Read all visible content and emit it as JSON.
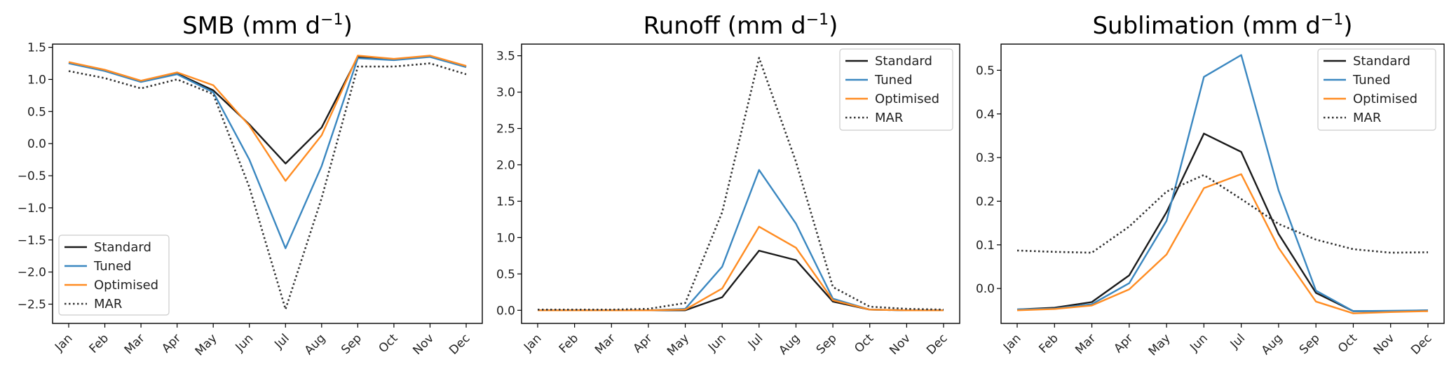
{
  "colors": {
    "standard": "#1a1a1a",
    "tuned": "#3a87c0",
    "optimised": "#ff8c22",
    "mar": "#333333"
  },
  "chart_data": [
    {
      "type": "line",
      "title": "SMB (mm d",
      "title_sup": "−1",
      "title_close": ")",
      "xlabel": "",
      "ylabel": "",
      "categories": [
        "Jan",
        "Feb",
        "Mar",
        "Apr",
        "May",
        "Jun",
        "Jul",
        "Aug",
        "Sep",
        "Oct",
        "Nov",
        "Dec"
      ],
      "ylim": [
        -2.8,
        1.55
      ],
      "yticks": [
        1.5,
        1.0,
        0.5,
        0.0,
        -0.5,
        -1.0,
        -1.5,
        -2.0,
        -2.5
      ],
      "ytick_labels": [
        "1.5",
        "1.0",
        "0.5",
        "0.0",
        "−0.5",
        "−1.0",
        "−1.5",
        "−2.0",
        "−2.5"
      ],
      "legend_position": "lower-left",
      "series": [
        {
          "name": "Standard",
          "color_key": "standard",
          "style": "solid",
          "values": [
            1.26,
            1.14,
            0.97,
            1.09,
            0.83,
            0.3,
            -0.31,
            0.25,
            1.35,
            1.31,
            1.36,
            1.2
          ]
        },
        {
          "name": "Tuned",
          "color_key": "tuned",
          "style": "solid",
          "values": [
            1.25,
            1.13,
            0.96,
            1.08,
            0.8,
            -0.25,
            -1.63,
            -0.35,
            1.33,
            1.3,
            1.35,
            1.19
          ]
        },
        {
          "name": "Optimised",
          "color_key": "optimised",
          "style": "solid",
          "values": [
            1.27,
            1.15,
            0.98,
            1.11,
            0.91,
            0.28,
            -0.58,
            0.13,
            1.37,
            1.32,
            1.37,
            1.21
          ]
        },
        {
          "name": "MAR",
          "color_key": "mar",
          "style": "dotted",
          "values": [
            1.13,
            1.02,
            0.86,
            1.0,
            0.77,
            -0.68,
            -2.58,
            -0.85,
            1.2,
            1.2,
            1.25,
            1.08
          ]
        }
      ]
    },
    {
      "type": "line",
      "title": "Runoff (mm d",
      "title_sup": "−1",
      "title_close": ")",
      "xlabel": "",
      "ylabel": "",
      "categories": [
        "Jan",
        "Feb",
        "Mar",
        "Apr",
        "May",
        "Jun",
        "Jul",
        "Aug",
        "Sep",
        "Oct",
        "Nov",
        "Dec"
      ],
      "ylim": [
        -0.18,
        3.66
      ],
      "yticks": [
        0.0,
        0.5,
        1.0,
        1.5,
        2.0,
        2.5,
        3.0,
        3.5
      ],
      "ytick_labels": [
        "0.0",
        "0.5",
        "1.0",
        "1.5",
        "2.0",
        "2.5",
        "3.0",
        "3.5"
      ],
      "legend_position": "upper-right",
      "series": [
        {
          "name": "Standard",
          "color_key": "standard",
          "style": "solid",
          "values": [
            0.0,
            0.0,
            0.0,
            0.0,
            0.0,
            0.18,
            0.82,
            0.69,
            0.12,
            0.01,
            0.0,
            0.0
          ]
        },
        {
          "name": "Tuned",
          "color_key": "tuned",
          "style": "solid",
          "values": [
            0.0,
            0.0,
            0.0,
            0.0,
            0.02,
            0.6,
            1.93,
            1.19,
            0.16,
            0.01,
            0.0,
            0.0
          ]
        },
        {
          "name": "Optimised",
          "color_key": "optimised",
          "style": "solid",
          "values": [
            0.0,
            0.0,
            0.0,
            0.0,
            0.01,
            0.3,
            1.15,
            0.86,
            0.14,
            0.01,
            0.0,
            0.0
          ]
        },
        {
          "name": "MAR",
          "color_key": "mar",
          "style": "dotted",
          "values": [
            0.01,
            0.01,
            0.01,
            0.02,
            0.1,
            1.35,
            3.47,
            2.04,
            0.32,
            0.05,
            0.02,
            0.01
          ]
        }
      ]
    },
    {
      "type": "line",
      "title": "Sublimation (mm d",
      "title_sup": "−1",
      "title_close": ")",
      "xlabel": "",
      "ylabel": "",
      "categories": [
        "Jan",
        "Feb",
        "Mar",
        "Apr",
        "May",
        "Jun",
        "Jul",
        "Aug",
        "Sep",
        "Oct",
        "Nov",
        "Dec"
      ],
      "ylim": [
        -0.08,
        0.56
      ],
      "yticks": [
        0.5,
        0.4,
        0.3,
        0.2,
        0.1,
        0.0
      ],
      "ytick_labels": [
        "0.5",
        "0.4",
        "0.3",
        "0.2",
        "0.1",
        "0.0"
      ],
      "legend_position": "upper-right",
      "series": [
        {
          "name": "Standard",
          "color_key": "standard",
          "style": "solid",
          "values": [
            -0.048,
            -0.044,
            -0.031,
            0.03,
            0.175,
            0.355,
            0.313,
            0.125,
            -0.01,
            -0.052,
            -0.052,
            -0.05
          ]
        },
        {
          "name": "Tuned",
          "color_key": "tuned",
          "style": "solid",
          "values": [
            -0.048,
            -0.046,
            -0.036,
            0.012,
            0.155,
            0.485,
            0.535,
            0.225,
            -0.005,
            -0.052,
            -0.051,
            -0.05
          ]
        },
        {
          "name": "Optimised",
          "color_key": "optimised",
          "style": "solid",
          "values": [
            -0.05,
            -0.047,
            -0.039,
            -0.002,
            0.078,
            0.23,
            0.262,
            0.093,
            -0.03,
            -0.057,
            -0.054,
            -0.052
          ]
        },
        {
          "name": "MAR",
          "color_key": "mar",
          "style": "dotted",
          "values": [
            0.087,
            0.084,
            0.082,
            0.142,
            0.222,
            0.26,
            0.205,
            0.148,
            0.112,
            0.09,
            0.082,
            0.083
          ]
        }
      ]
    }
  ]
}
